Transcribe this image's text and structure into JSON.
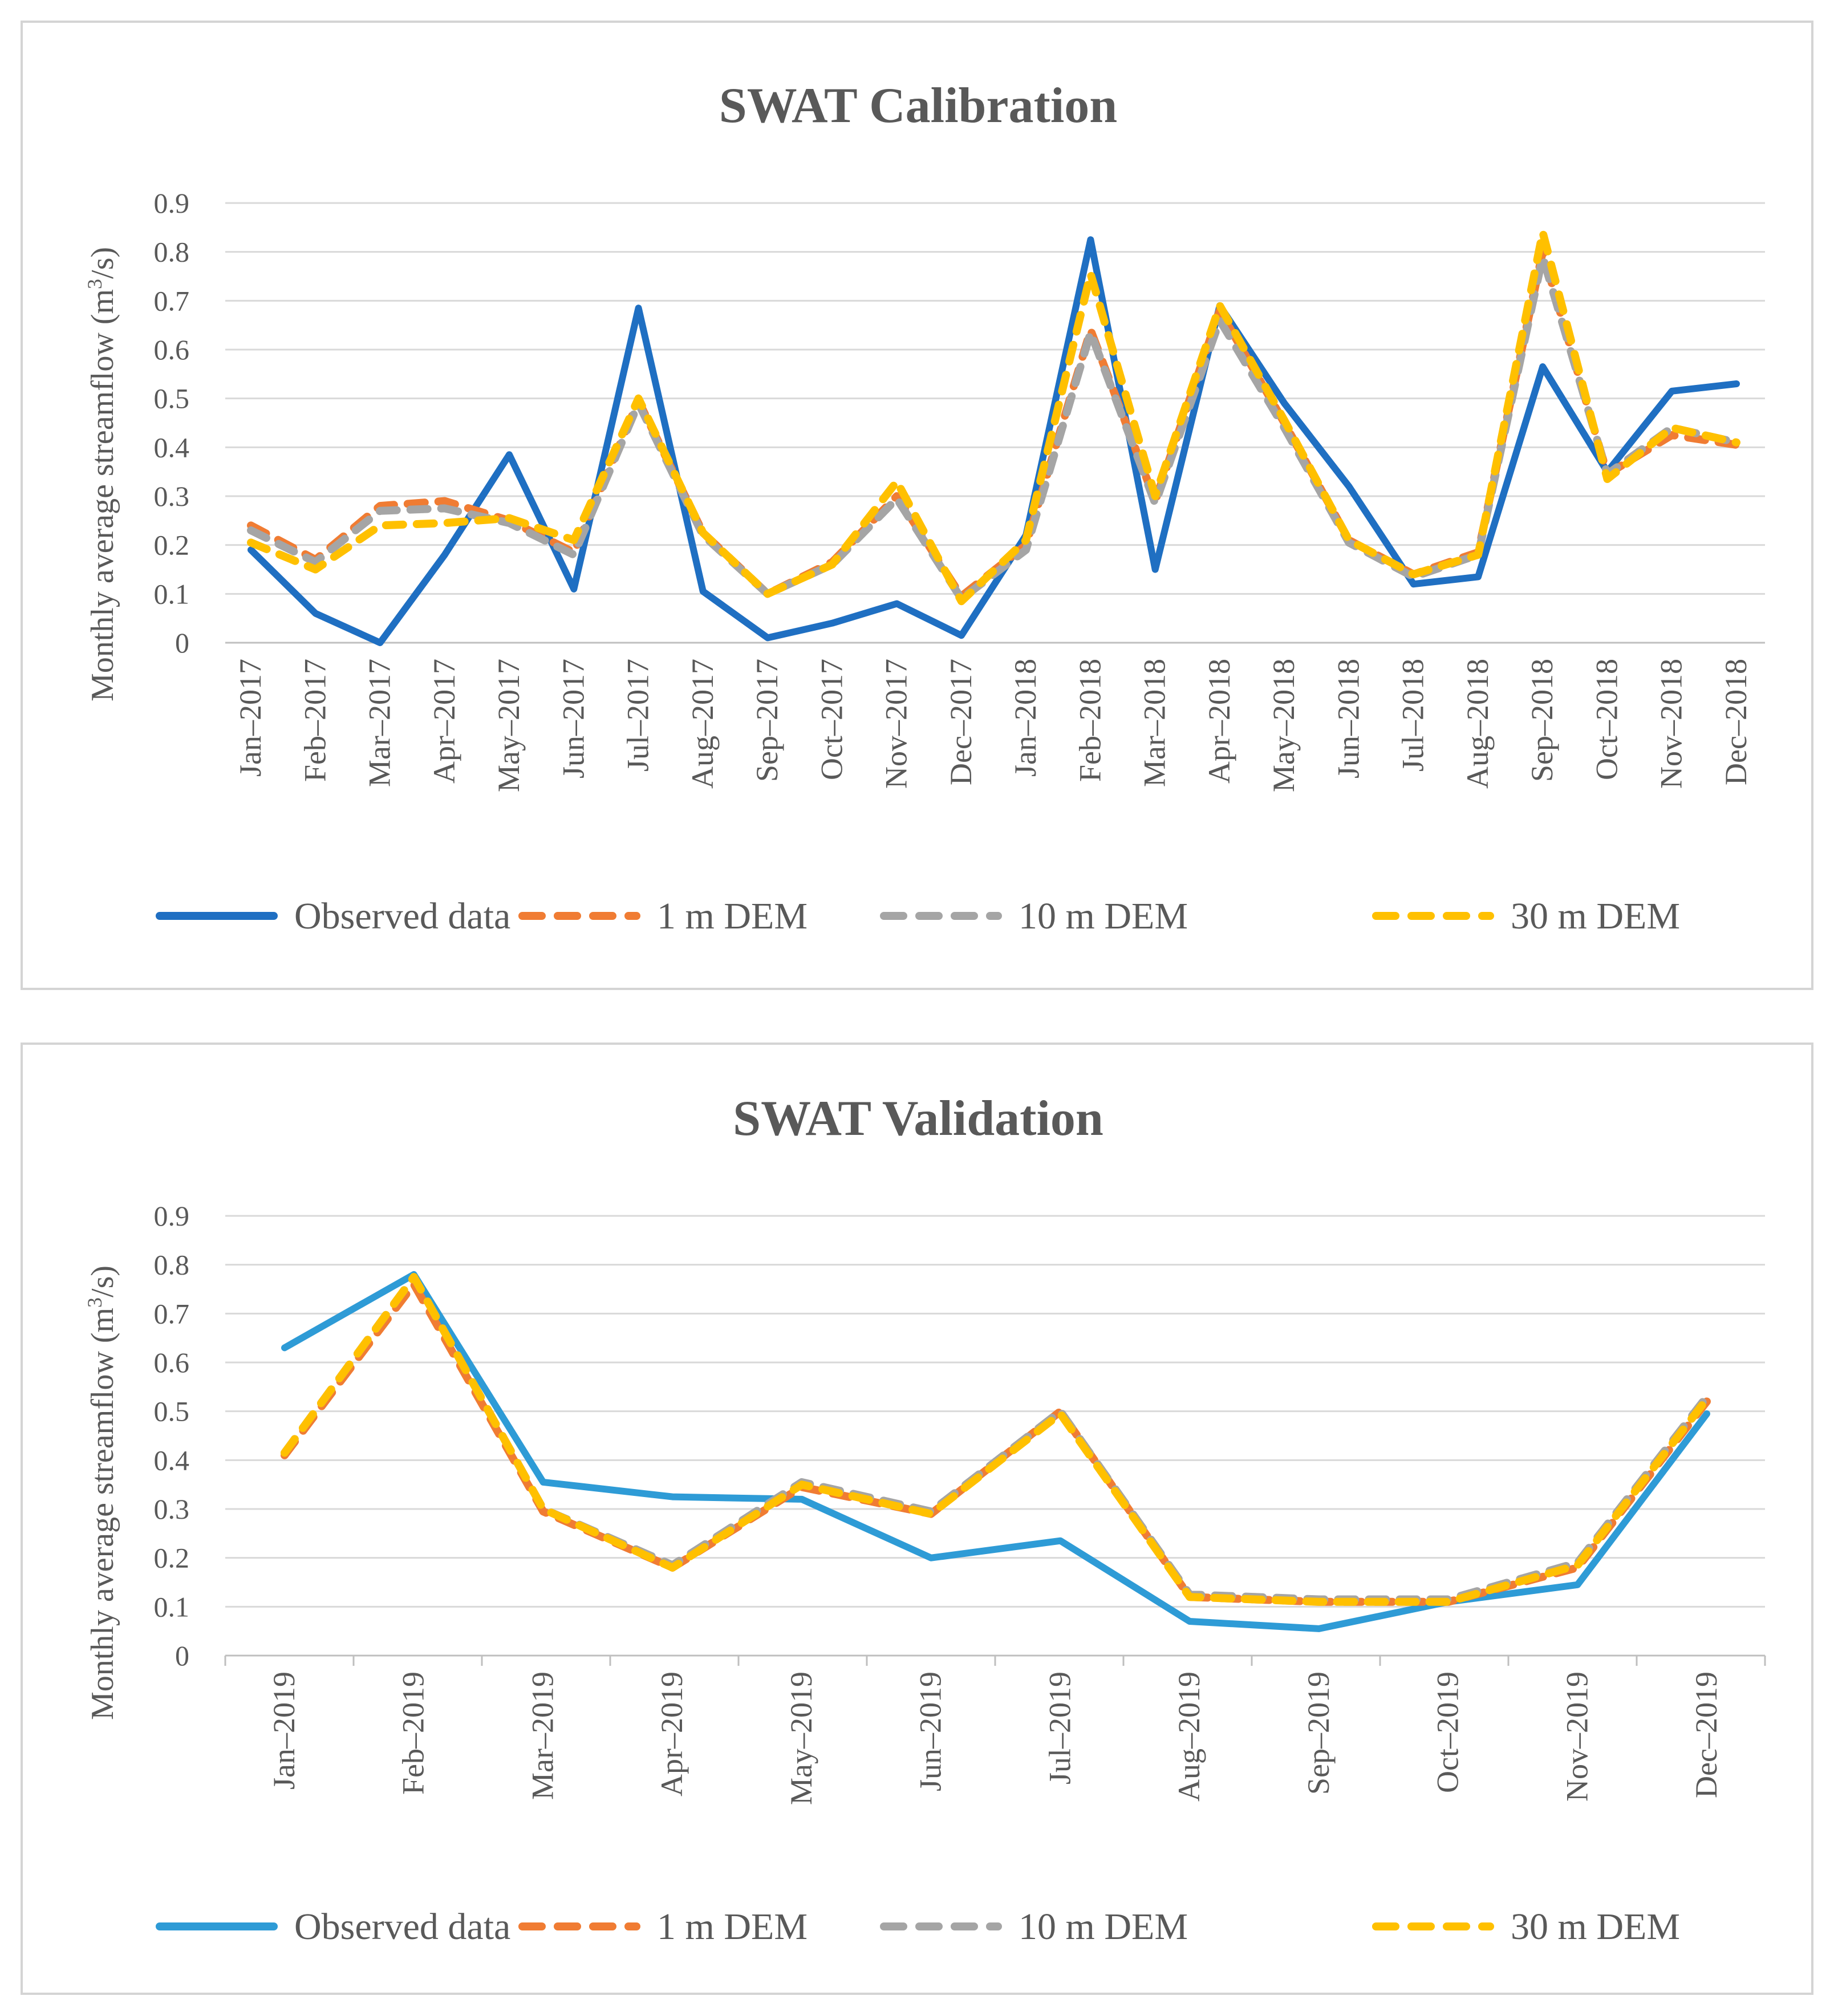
{
  "chart_data": [
    {
      "type": "line",
      "title": "SWAT Calibration",
      "xlabel": "",
      "ylabel_text": "Monthly average streamflow (m",
      "ylabel_sup": "3",
      "ylabel_tail": "/s)",
      "ylim": [
        0,
        0.9
      ],
      "yticks": [
        "0",
        "0.1",
        "0.2",
        "0.3",
        "0.4",
        "0.5",
        "0.6",
        "0.7",
        "0.8",
        "0.9"
      ],
      "grid": true,
      "legend_position": "bottom",
      "categories": [
        "Jan–2017",
        "Feb–2017",
        "Mar–2017",
        "Apr–2017",
        "May–2017",
        "Jun–2017",
        "Jul–2017",
        "Aug–2017",
        "Sep–2017",
        "Oct–2017",
        "Nov–2017",
        "Dec–2017",
        "Jan–2018",
        "Feb–2018",
        "Mar–2018",
        "Apr–2018",
        "May–2018",
        "Jun–2018",
        "Jul–2018",
        "Aug–2018",
        "Sep–2018",
        "Oct–2018",
        "Nov–2018",
        "Dec–2018"
      ],
      "series": [
        {
          "name": "Observed data",
          "color": "#1F6FC2",
          "dash": false,
          "values": [
            0.19,
            0.06,
            0.0,
            0.18,
            0.385,
            0.11,
            0.685,
            0.105,
            0.01,
            0.04,
            0.08,
            0.015,
            0.22,
            0.825,
            0.15,
            0.69,
            0.49,
            0.32,
            0.12,
            0.135,
            0.565,
            0.35,
            0.515,
            0.53
          ]
        },
        {
          "name": "1 m DEM",
          "color": "#F07C33",
          "dash": true,
          "values": [
            0.24,
            0.17,
            0.28,
            0.29,
            0.25,
            0.185,
            0.495,
            0.225,
            0.1,
            0.165,
            0.3,
            0.095,
            0.2,
            0.64,
            0.29,
            0.68,
            0.45,
            0.21,
            0.14,
            0.185,
            0.8,
            0.345,
            0.425,
            0.405
          ]
        },
        {
          "name": "10 m DEM",
          "color": "#A5A5A5",
          "dash": true,
          "values": [
            0.23,
            0.165,
            0.27,
            0.275,
            0.245,
            0.18,
            0.49,
            0.22,
            0.1,
            0.16,
            0.295,
            0.09,
            0.19,
            0.635,
            0.285,
            0.66,
            0.44,
            0.205,
            0.135,
            0.18,
            0.79,
            0.345,
            0.44,
            0.41
          ]
        },
        {
          "name": "30 m DEM",
          "color": "#FFC000",
          "dash": true,
          "values": [
            0.205,
            0.15,
            0.24,
            0.245,
            0.255,
            0.21,
            0.5,
            0.225,
            0.1,
            0.16,
            0.33,
            0.085,
            0.21,
            0.755,
            0.3,
            0.69,
            0.455,
            0.21,
            0.14,
            0.18,
            0.84,
            0.335,
            0.44,
            0.41
          ]
        }
      ]
    },
    {
      "type": "line",
      "title": "SWAT Validation",
      "xlabel": "",
      "ylabel_text": "Monthly average streamflow (m",
      "ylabel_sup": "3",
      "ylabel_tail": "/s)",
      "ylim": [
        0,
        0.9
      ],
      "yticks": [
        "0",
        "0.1",
        "0.2",
        "0.3",
        "0.4",
        "0.5",
        "0.6",
        "0.7",
        "0.8",
        "0.9"
      ],
      "grid": true,
      "legend_position": "bottom",
      "categories": [
        "Jan–2019",
        "Feb–2019",
        "Mar–2019",
        "Apr–2019",
        "May–2019",
        "Jun–2019",
        "Jul–2019",
        "Aug–2019",
        "Sep–2019",
        "Oct–2019",
        "Nov–2019",
        "Dec–2019"
      ],
      "series": [
        {
          "name": "Observed data",
          "color": "#2E9BD6",
          "dash": false,
          "values": [
            0.63,
            0.78,
            0.355,
            0.325,
            0.32,
            0.2,
            0.235,
            0.07,
            0.055,
            0.11,
            0.145,
            0.495
          ]
        },
        {
          "name": "1 m DEM",
          "color": "#F07C33",
          "dash": true,
          "values": [
            0.41,
            0.76,
            0.295,
            0.18,
            0.345,
            0.29,
            0.5,
            0.12,
            0.11,
            0.11,
            0.18,
            0.52
          ]
        },
        {
          "name": "10 m DEM",
          "color": "#A5A5A5",
          "dash": true,
          "values": [
            0.415,
            0.775,
            0.3,
            0.185,
            0.355,
            0.295,
            0.5,
            0.125,
            0.115,
            0.115,
            0.19,
            0.53
          ]
        },
        {
          "name": "30 m DEM",
          "color": "#FFC000",
          "dash": true,
          "values": [
            0.415,
            0.775,
            0.3,
            0.18,
            0.35,
            0.29,
            0.495,
            0.12,
            0.11,
            0.11,
            0.185,
            0.525
          ]
        }
      ]
    }
  ]
}
